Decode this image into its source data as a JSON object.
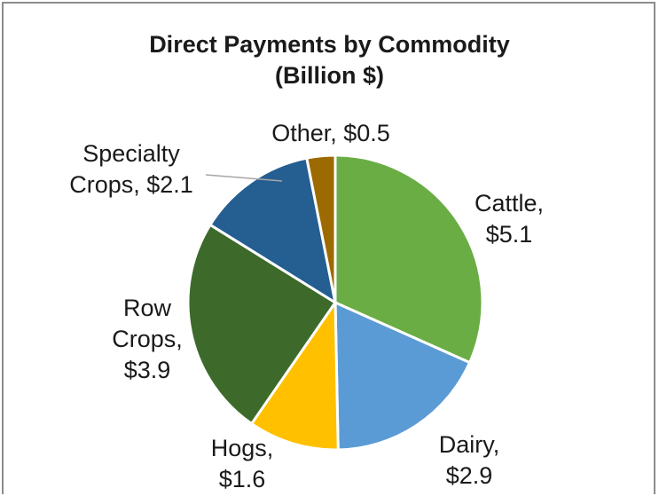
{
  "chart_data": {
    "type": "pie",
    "title_lines": [
      "Direct Payments by Commodity",
      "(Billion $)"
    ],
    "unit": "Billion $",
    "slices": [
      {
        "category": "Cattle",
        "value": 5.1,
        "label_lines": [
          "Cattle,",
          "$5.1"
        ],
        "color": "#6aad45"
      },
      {
        "category": "Dairy",
        "value": 2.9,
        "label_lines": [
          "Dairy,",
          "$2.9"
        ],
        "color": "#5b9bd5"
      },
      {
        "category": "Hogs",
        "value": 1.6,
        "label_lines": [
          "Hogs,",
          "$1.6"
        ],
        "color": "#ffc000"
      },
      {
        "category": "Row Crops",
        "value": 3.9,
        "label_lines": [
          "Row",
          "Crops,",
          "$3.9"
        ],
        "color": "#3d6a2b"
      },
      {
        "category": "Specialty Crops",
        "value": 2.1,
        "label_lines": [
          "Specialty",
          "Crops, $2.1"
        ],
        "color": "#255e91"
      },
      {
        "category": "Other",
        "value": 0.5,
        "label_lines": [
          "Other, $0.5"
        ],
        "color": "#9c6a00"
      }
    ],
    "start": "12 o'clock",
    "direction": "clockwise",
    "legend": "none"
  }
}
